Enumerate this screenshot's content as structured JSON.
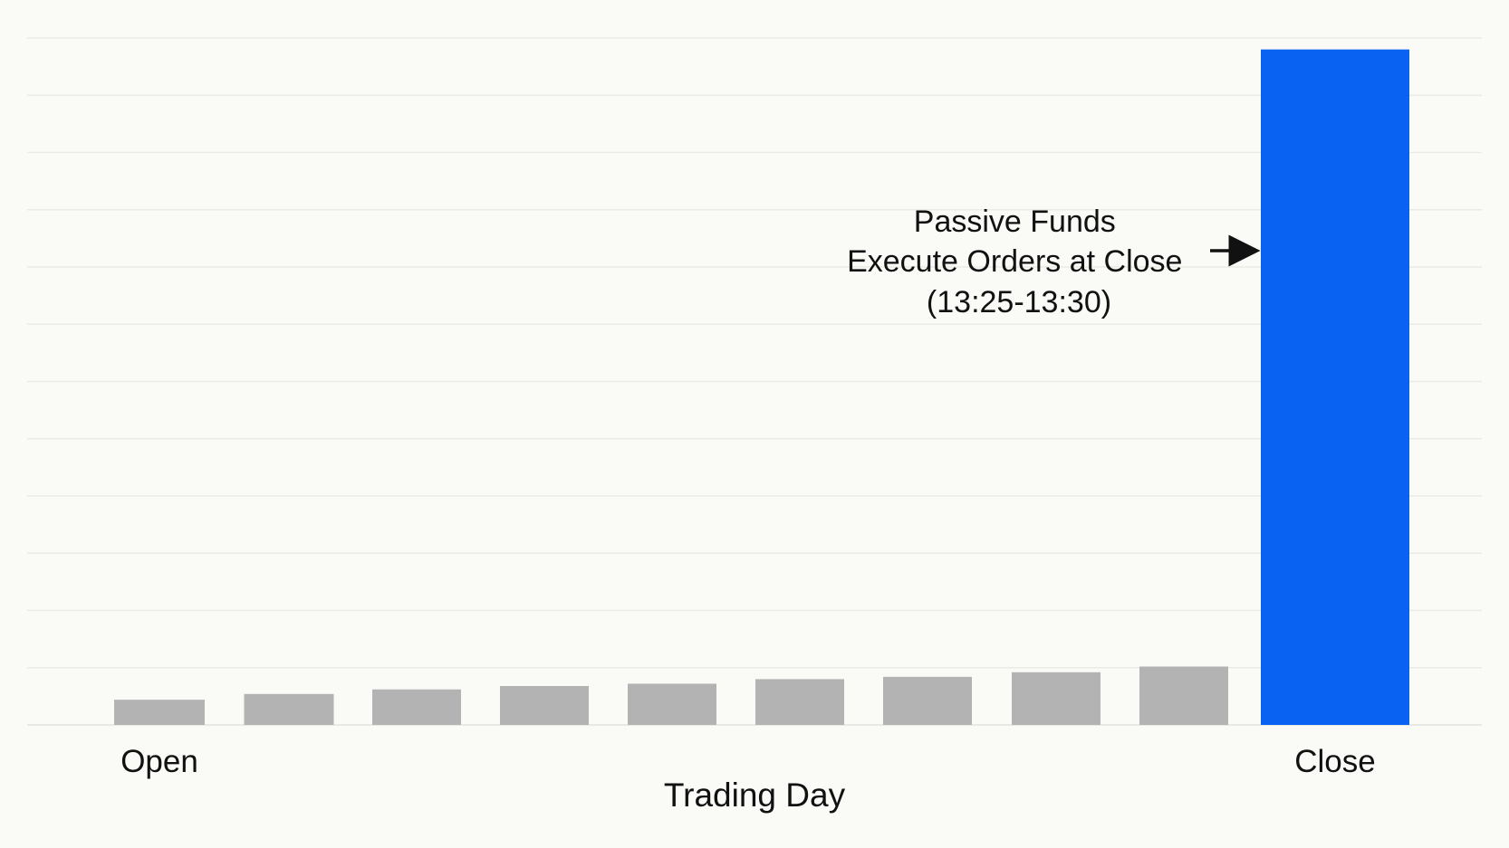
{
  "chart_data": {
    "type": "bar",
    "title": "",
    "xlabel": "Trading Day",
    "ylabel": "",
    "categories": [
      "Open",
      "",
      "",
      "",
      "",
      "",
      "",
      "",
      "",
      "Close"
    ],
    "values": [
      2.2,
      2.7,
      3.1,
      3.4,
      3.6,
      4.0,
      4.2,
      4.6,
      5.1,
      59.0
    ],
    "ylim": [
      0,
      60
    ],
    "grid": true,
    "bar_colors": [
      "#b3b3b3",
      "#b3b3b3",
      "#b3b3b3",
      "#b3b3b3",
      "#b3b3b3",
      "#b3b3b3",
      "#b3b3b3",
      "#b3b3b3",
      "#b3b3b3",
      "#0a62f2"
    ],
    "annotation": {
      "lines": [
        "Passive Funds",
        "Execute Orders at Close",
        "(13:25-13:30)"
      ],
      "target_category": "Close",
      "arrow": "right"
    }
  },
  "colors": {
    "background": "#fafaf7",
    "gridline": "#ebebe6",
    "baseline": "#e3e3de",
    "bar_default": "#b3b3b3",
    "bar_highlight": "#0a62f2",
    "text": "#111111"
  }
}
